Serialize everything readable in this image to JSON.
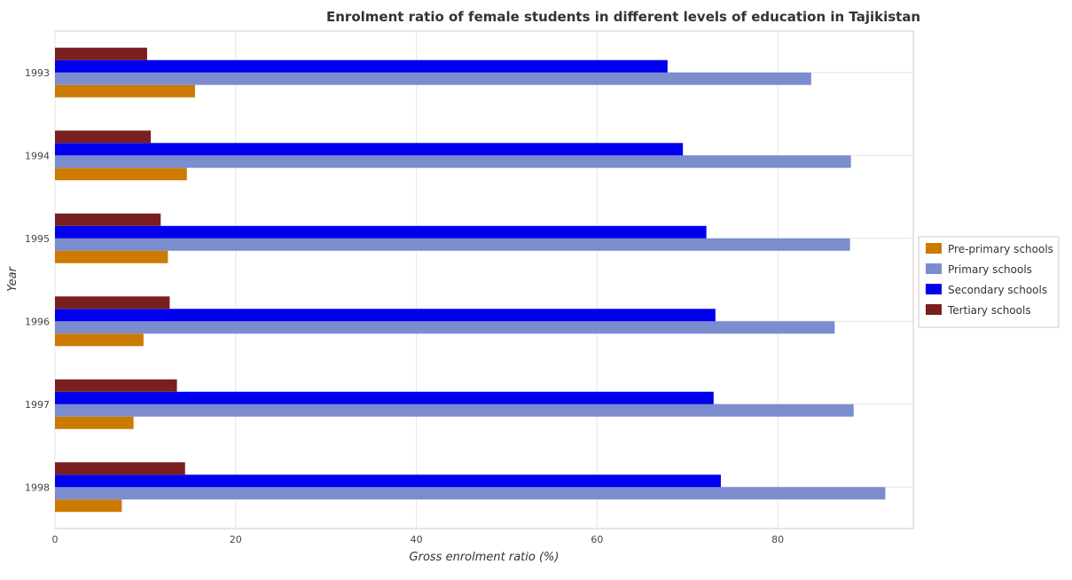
{
  "chart_data": {
    "type": "bar",
    "orientation": "horizontal",
    "title": "Enrolment ratio of female students in different levels of education in Tajikistan",
    "xlabel": "Gross enrolment ratio (%)",
    "ylabel": "Year",
    "xlim": [
      0,
      95
    ],
    "xticks": [
      0,
      20,
      40,
      60,
      80
    ],
    "grid": true,
    "legend_position": "right",
    "categories": [
      "1993",
      "1994",
      "1995",
      "1996",
      "1997",
      "1998"
    ],
    "series": [
      {
        "name": "Pre-primary schools",
        "color": "#cc7a00",
        "values": [
          15.5,
          14.6,
          12.5,
          9.8,
          8.7,
          7.4
        ]
      },
      {
        "name": "Primary schools",
        "color": "#7b8ccf",
        "values": [
          83.7,
          88.1,
          88.0,
          86.3,
          88.4,
          91.9
        ]
      },
      {
        "name": "Secondary schools",
        "color": "#0000ee",
        "values": [
          67.8,
          69.5,
          72.1,
          73.1,
          72.9,
          73.7
        ]
      },
      {
        "name": "Tertiary schools",
        "color": "#7a1f1f",
        "values": [
          10.2,
          10.6,
          11.7,
          12.7,
          13.5,
          14.4
        ]
      }
    ]
  }
}
